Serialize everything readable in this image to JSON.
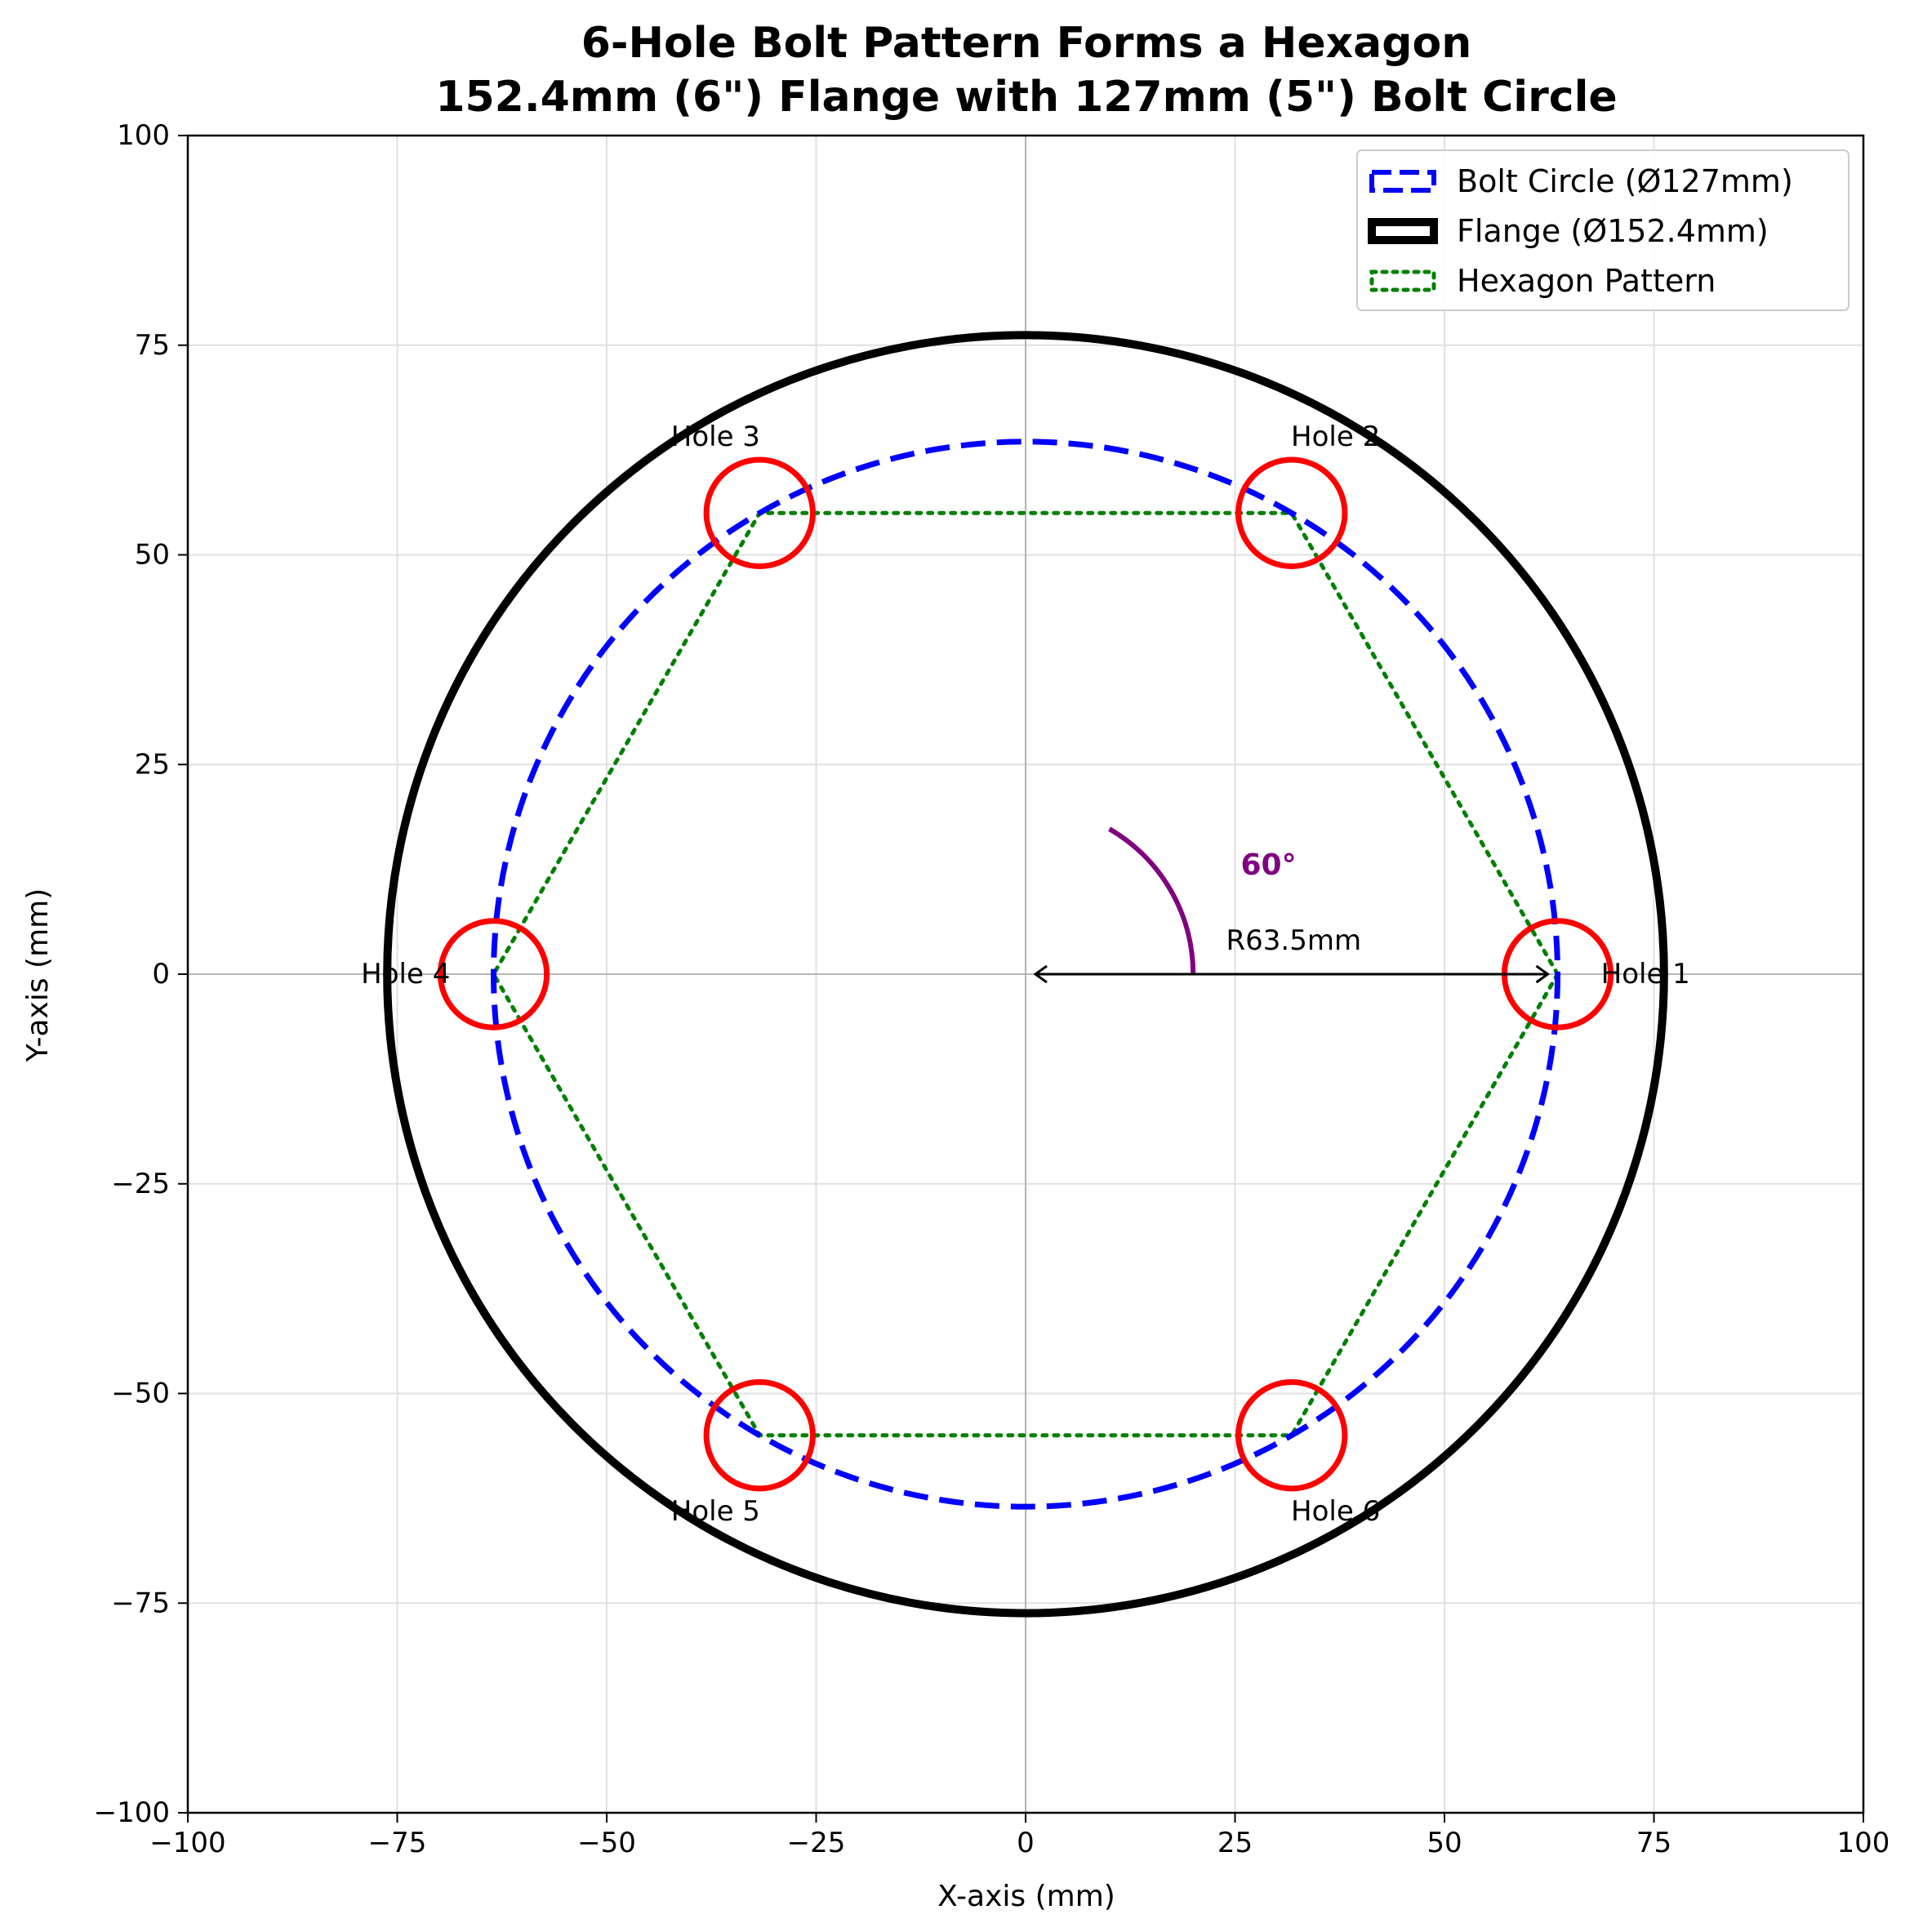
{
  "chart_data": {
    "type": "scatter",
    "title": "6-Hole Bolt Pattern Forms a Hexagon",
    "subtitle": "152.4mm (6\") Flange with 127mm (5\") Bolt Circle",
    "xlabel": "X-axis (mm)",
    "ylabel": "Y-axis (mm)",
    "xlim": [
      -100,
      100
    ],
    "ylim": [
      -100,
      100
    ],
    "xticks": [
      -100,
      -75,
      -50,
      -25,
      0,
      25,
      50,
      75,
      100
    ],
    "yticks": [
      -100,
      -75,
      -50,
      -25,
      0,
      25,
      50,
      75,
      100
    ],
    "tick_labels": {
      "x": [
        "−100",
        "−75",
        "−50",
        "−25",
        "0",
        "25",
        "50",
        "75",
        "100"
      ],
      "y": [
        "−100",
        "−75",
        "−50",
        "−25",
        "0",
        "25",
        "50",
        "75",
        "100"
      ]
    },
    "grid": true,
    "legend_position": "top-right",
    "legend": [
      {
        "label": "Bolt Circle (Ø127mm)",
        "style": "dashed",
        "color": "#0000ff"
      },
      {
        "label": "Flange (Ø152.4mm)",
        "style": "solid",
        "color": "#000000"
      },
      {
        "label": "Hexagon Pattern",
        "style": "dotted",
        "color": "#008000"
      }
    ],
    "flange": {
      "center": [
        0,
        0
      ],
      "radius": 76.2,
      "color": "#000000"
    },
    "bolt_circle": {
      "center": [
        0,
        0
      ],
      "radius": 63.5,
      "color": "#0000ff"
    },
    "hole_radius": 6.35,
    "hole_color": "#ff0000",
    "hexagon_color": "#008000",
    "holes": [
      {
        "label": "Hole 1",
        "x": 63.5,
        "y": 0.0
      },
      {
        "label": "Hole 2",
        "x": 31.75,
        "y": 54.99
      },
      {
        "label": "Hole 3",
        "x": -31.75,
        "y": 54.99
      },
      {
        "label": "Hole 4",
        "x": -63.5,
        "y": 0.0
      },
      {
        "label": "Hole 5",
        "x": -31.75,
        "y": -54.99
      },
      {
        "label": "Hole 6",
        "x": 31.75,
        "y": -54.99
      }
    ],
    "annotations": {
      "angle": {
        "label": "60°",
        "radius": 20,
        "from_deg": 0,
        "to_deg": 60,
        "color": "#800080",
        "text_x": 29,
        "text_y": 13
      },
      "radius": {
        "label": "R63.5mm",
        "from": [
          0,
          0
        ],
        "to": [
          63.5,
          0
        ],
        "text_x": 32,
        "text_y": 4
      }
    }
  }
}
